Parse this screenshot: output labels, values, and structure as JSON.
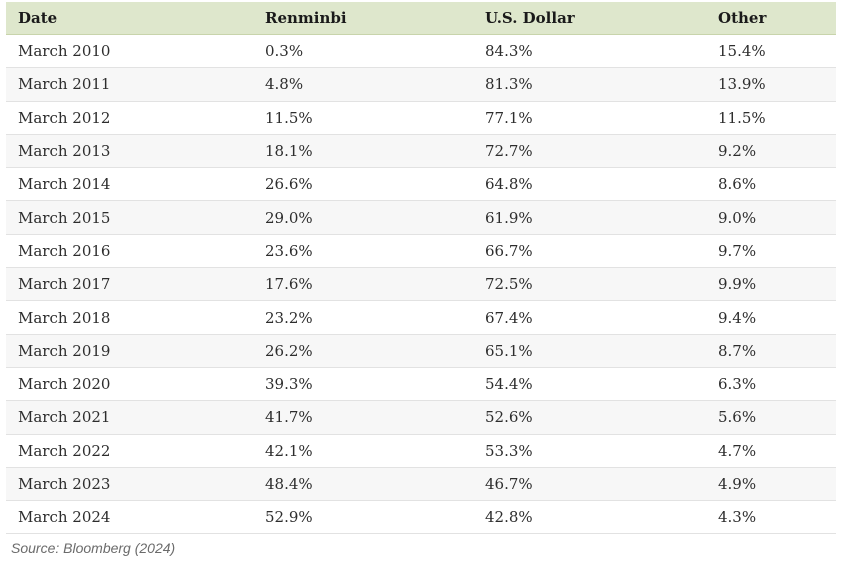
{
  "table": {
    "columns": [
      "Date",
      "Renminbi",
      "U.S. Dollar",
      "Other"
    ],
    "rows": [
      [
        "March 2010",
        "0.3%",
        "84.3%",
        "15.4%"
      ],
      [
        "March 2011",
        "4.8%",
        "81.3%",
        "13.9%"
      ],
      [
        "March 2012",
        "11.5%",
        "77.1%",
        "11.5%"
      ],
      [
        "March 2013",
        "18.1%",
        "72.7%",
        "9.2%"
      ],
      [
        "March 2014",
        "26.6%",
        "64.8%",
        "8.6%"
      ],
      [
        "March 2015",
        "29.0%",
        "61.9%",
        "9.0%"
      ],
      [
        "March 2016",
        "23.6%",
        "66.7%",
        "9.7%"
      ],
      [
        "March 2017",
        "17.6%",
        "72.5%",
        "9.9%"
      ],
      [
        "March 2018",
        "23.2%",
        "67.4%",
        "9.4%"
      ],
      [
        "March 2019",
        "26.2%",
        "65.1%",
        "8.7%"
      ],
      [
        "March 2020",
        "39.3%",
        "54.4%",
        "6.3%"
      ],
      [
        "March 2021",
        "41.7%",
        "52.6%",
        "5.6%"
      ],
      [
        "March 2022",
        "42.1%",
        "53.3%",
        "4.7%"
      ],
      [
        "March 2023",
        "48.4%",
        "46.7%",
        "4.9%"
      ],
      [
        "March 2024",
        "52.9%",
        "42.8%",
        "4.3%"
      ]
    ]
  },
  "source": "Source: Bloomberg (2024)",
  "colors": {
    "header_background": "#dee7cc",
    "header_border": "#c8d4ab",
    "row_alt_background": "#f7f7f7",
    "row_separator": "#e2e2e2",
    "body_text": "#2d2d2d",
    "source_text": "#6b6b6b"
  },
  "chart_data": {
    "type": "table",
    "title": "",
    "categories": [
      "March 2010",
      "March 2011",
      "March 2012",
      "March 2013",
      "March 2014",
      "March 2015",
      "March 2016",
      "March 2017",
      "March 2018",
      "March 2019",
      "March 2020",
      "March 2021",
      "March 2022",
      "March 2023",
      "March 2024"
    ],
    "series": [
      {
        "name": "Renminbi",
        "values": [
          0.3,
          4.8,
          11.5,
          18.1,
          26.6,
          29.0,
          23.6,
          17.6,
          23.2,
          26.2,
          39.3,
          41.7,
          42.1,
          48.4,
          52.9
        ]
      },
      {
        "name": "U.S. Dollar",
        "values": [
          84.3,
          81.3,
          77.1,
          72.7,
          64.8,
          61.9,
          66.7,
          72.5,
          67.4,
          65.1,
          54.4,
          52.6,
          53.3,
          46.7,
          42.8
        ]
      },
      {
        "name": "Other",
        "values": [
          15.4,
          13.9,
          11.5,
          9.2,
          8.6,
          9.0,
          9.7,
          9.9,
          9.4,
          8.7,
          6.3,
          5.6,
          4.7,
          4.9,
          4.3
        ]
      }
    ],
    "value_unit": "%",
    "source": "Source: Bloomberg (2024)",
    "legend_position": "none",
    "grid": false
  }
}
